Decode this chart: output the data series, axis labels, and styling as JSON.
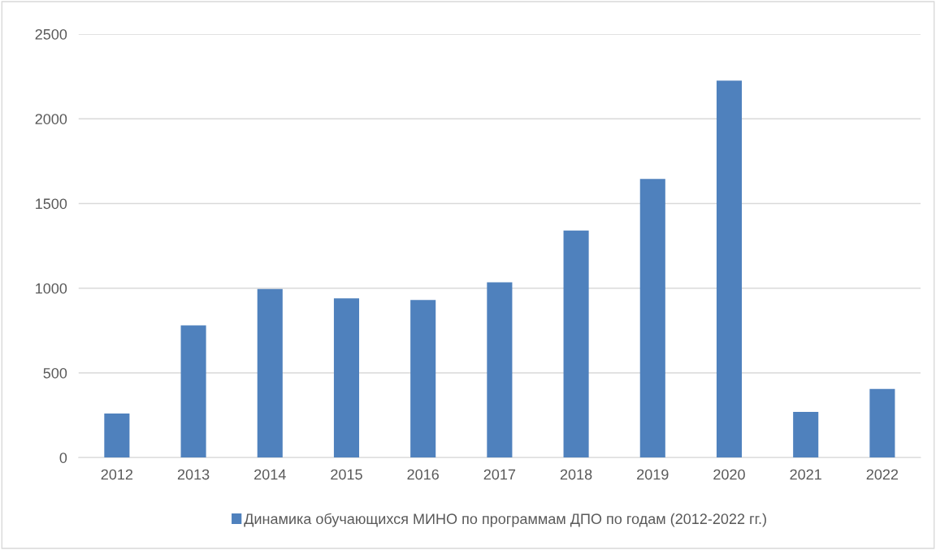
{
  "chart_data": {
    "type": "bar",
    "categories": [
      "2012",
      "2013",
      "2014",
      "2015",
      "2016",
      "2017",
      "2018",
      "2019",
      "2020",
      "2021",
      "2022"
    ],
    "series": [
      {
        "name": "Динамика обучающихся МИНО по программам ДПО по годам (2012-2022 гг.)",
        "color": "#4f81bd",
        "values": [
          260,
          780,
          995,
          940,
          930,
          1035,
          1340,
          1645,
          2225,
          270,
          405
        ]
      }
    ],
    "ylim": [
      0,
      2500
    ],
    "yticks": [
      0,
      500,
      1000,
      1500,
      2000,
      2500
    ],
    "grid": "y",
    "legend": "bottom"
  }
}
